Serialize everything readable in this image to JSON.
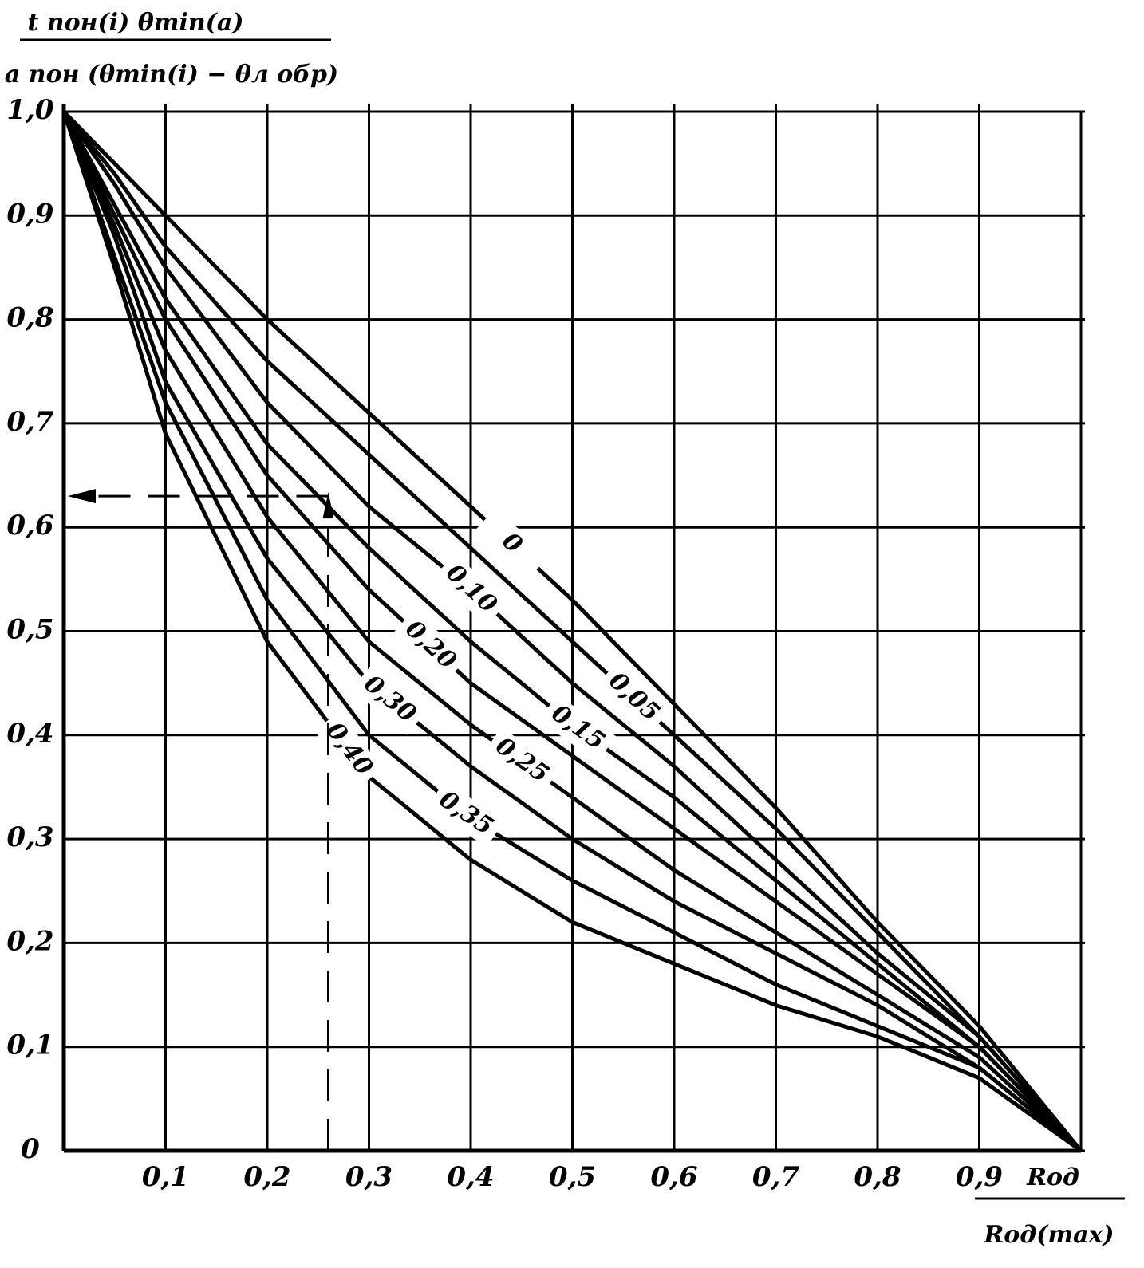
{
  "chart_data": {
    "type": "line",
    "y_label": {
      "numerator": "t пон(i) θmin(a)",
      "denominator": "a пон (θmin(i) − θл обр)"
    },
    "x_label": {
      "numerator": "Rод",
      "denominator": "Rод(max)"
    },
    "x": [
      0,
      0.05,
      0.1,
      0.2,
      0.3,
      0.4,
      0.5,
      0.6,
      0.7,
      0.8,
      0.9,
      1.0
    ],
    "series": [
      {
        "name": "0",
        "color": "#000000",
        "values": [
          1.0,
          0.95,
          0.9,
          0.8,
          0.71,
          0.62,
          0.53,
          0.43,
          0.33,
          0.22,
          0.12,
          0.0
        ]
      },
      {
        "name": "0,05",
        "color": "#000000",
        "values": [
          1.0,
          0.94,
          0.87,
          0.76,
          0.67,
          0.58,
          0.49,
          0.4,
          0.31,
          0.21,
          0.11,
          0.0
        ]
      },
      {
        "name": "0,10",
        "color": "#000000",
        "values": [
          1.0,
          0.93,
          0.85,
          0.72,
          0.62,
          0.54,
          0.45,
          0.37,
          0.28,
          0.19,
          0.11,
          0.0
        ]
      },
      {
        "name": "0,15",
        "color": "#000000",
        "values": [
          1.0,
          0.91,
          0.82,
          0.68,
          0.58,
          0.49,
          0.41,
          0.34,
          0.26,
          0.18,
          0.1,
          0.0
        ]
      },
      {
        "name": "0,20",
        "color": "#000000",
        "values": [
          1.0,
          0.9,
          0.8,
          0.65,
          0.54,
          0.45,
          0.38,
          0.31,
          0.24,
          0.17,
          0.1,
          0.0
        ]
      },
      {
        "name": "0,25",
        "color": "#000000",
        "values": [
          1.0,
          0.89,
          0.77,
          0.61,
          0.49,
          0.41,
          0.34,
          0.27,
          0.21,
          0.15,
          0.09,
          0.0
        ]
      },
      {
        "name": "0,30",
        "color": "#000000",
        "values": [
          1.0,
          0.88,
          0.74,
          0.57,
          0.45,
          0.37,
          0.3,
          0.24,
          0.19,
          0.14,
          0.08,
          0.0
        ]
      },
      {
        "name": "0,35",
        "color": "#000000",
        "values": [
          1.0,
          0.86,
          0.72,
          0.53,
          0.4,
          0.32,
          0.26,
          0.21,
          0.16,
          0.12,
          0.08,
          0.0
        ]
      },
      {
        "name": "0,40",
        "color": "#000000",
        "values": [
          1.0,
          0.85,
          0.69,
          0.49,
          0.36,
          0.28,
          0.22,
          0.18,
          0.14,
          0.11,
          0.07,
          0.0
        ]
      }
    ],
    "example_point": {
      "x": 0.26,
      "y": 0.63
    },
    "xlim": [
      0,
      1.0
    ],
    "ylim": [
      0,
      1.0
    ],
    "xticks": [
      {
        "value": 0.1,
        "label": "0,1"
      },
      {
        "value": 0.2,
        "label": "0,2"
      },
      {
        "value": 0.3,
        "label": "0,3"
      },
      {
        "value": 0.4,
        "label": "0,4"
      },
      {
        "value": 0.5,
        "label": "0,5"
      },
      {
        "value": 0.6,
        "label": "0,6"
      },
      {
        "value": 0.7,
        "label": "0,7"
      },
      {
        "value": 0.8,
        "label": "0,8"
      },
      {
        "value": 0.9,
        "label": "0,9"
      }
    ],
    "yticks": [
      0,
      {
        "value": 0.1,
        "label": "0,1"
      },
      {
        "value": 0.2,
        "label": "0,2"
      },
      {
        "value": 0.3,
        "label": "0,3"
      },
      {
        "value": 0.4,
        "label": "0,4"
      },
      {
        "value": 0.5,
        "label": "0,5"
      },
      {
        "value": 0.6,
        "label": "0,6"
      },
      {
        "value": 0.7,
        "label": "0,7"
      },
      {
        "value": 0.8,
        "label": "0,8"
      },
      {
        "value": 0.9,
        "label": "0,9"
      },
      {
        "value": 1.0,
        "label": "1,0"
      }
    ],
    "grid": true
  }
}
